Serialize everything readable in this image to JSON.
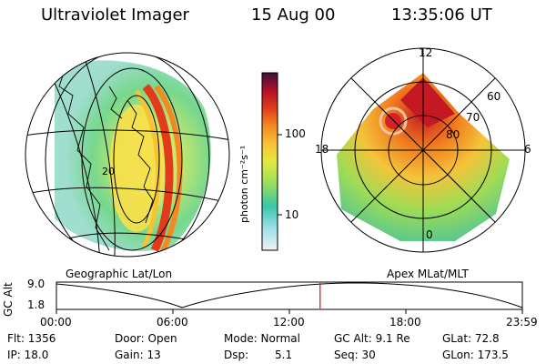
{
  "header": {
    "instrument": "Ultraviolet Imager",
    "date": "15 Aug 00",
    "time": "13:35:06 UT"
  },
  "left_panel": {
    "label": "Geographic Lat/Lon",
    "grid_label": "20"
  },
  "right_panel": {
    "label": "Apex MLat/MLT",
    "mlt_labels": {
      "top": "12",
      "bottom": "0",
      "left": "18",
      "right": "6"
    },
    "lat_labels": [
      "60",
      "70",
      "80"
    ]
  },
  "colorbar": {
    "unit_label": "photon cm⁻²s⁻¹",
    "ticks": [
      "100",
      "10"
    ],
    "colors": [
      "#f2f2f2",
      "#6fd3e4",
      "#38c7a8",
      "#9be05a",
      "#e4ea3c",
      "#f9c232",
      "#f48a1f",
      "#e23a1b",
      "#b40f2a",
      "#7a0c4a",
      "#3a0f3a"
    ]
  },
  "orbit_plot": {
    "ylabel": "GC Alt",
    "yticks": [
      "9.0",
      "1.8"
    ],
    "xticks": [
      "00:00",
      "06:00",
      "12:00",
      "18:00",
      "23:59"
    ],
    "current_time_fraction": 0.566
  },
  "status": {
    "flt": "Flt: 1356",
    "ip": "IP: 18.0",
    "door": "Door: Open",
    "gain": "Gain: 13",
    "mode": "Mode: Normal",
    "dsp_label": "Dsp:",
    "dsp_value": "5.1",
    "gc_alt": "GC Alt: 9.1 Re",
    "seq": "Seq: 30",
    "glat": "GLat: 72.8",
    "glon": "GLon: 173.5"
  }
}
